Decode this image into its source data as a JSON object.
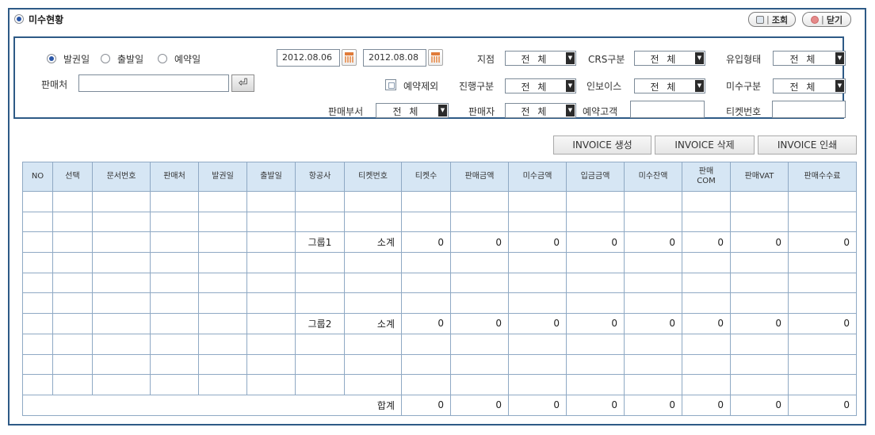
{
  "title": "미수현황",
  "buttons": {
    "search": "조회",
    "close": "닫기"
  },
  "search": {
    "date_types": [
      "발권일",
      "출발일",
      "예약일"
    ],
    "date_from": "2012.08.06",
    "date_to": "2012.08.08",
    "seller_label": "판매처",
    "seller_value": "",
    "enter_icon": "⏎",
    "exclude_reservation_label": "예약제외",
    "branch_label": "지점",
    "branch_value": "전 체",
    "crs_label": "CRS구분",
    "crs_value": "전 체",
    "inflow_label": "유입형태",
    "inflow_value": "전 체",
    "progress_label": "진행구분",
    "progress_value": "전 체",
    "invoice_label": "인보이스",
    "invoice_value": "전 체",
    "unpaid_type_label": "미수구분",
    "unpaid_type_value": "전 체",
    "dept_label": "판매부서",
    "dept_value": "전 체",
    "salesperson_label": "판매자",
    "salesperson_value": "전 체",
    "customer_label": "예약고객",
    "customer_value": "",
    "ticket_label": "티켓번호",
    "ticket_value": ""
  },
  "invoice_buttons": [
    "INVOICE 생성",
    "INVOICE 삭제",
    "INVOICE 인쇄"
  ],
  "table": {
    "headers": [
      "NO",
      "선택",
      "문서번호",
      "판매처",
      "발권일",
      "출발일",
      "항공사",
      "티켓번호",
      "티켓수",
      "판매금액",
      "미수금액",
      "입금금액",
      "미수잔액",
      "판매\nCOM",
      "판매VAT",
      "판매수수료"
    ],
    "rows": [
      [
        "",
        "",
        "",
        "",
        "",
        "",
        "",
        "",
        "",
        "",
        "",
        "",
        "",
        "",
        "",
        ""
      ],
      [
        "",
        "",
        "",
        "",
        "",
        "",
        "",
        "",
        "",
        "",
        "",
        "",
        "",
        "",
        "",
        ""
      ],
      [
        "",
        "",
        "",
        "",
        "",
        "",
        "그룹1",
        "소계",
        "0",
        "0",
        "0",
        "0",
        "0",
        "0",
        "0",
        "0"
      ],
      [
        "",
        "",
        "",
        "",
        "",
        "",
        "",
        "",
        "",
        "",
        "",
        "",
        "",
        "",
        "",
        ""
      ],
      [
        "",
        "",
        "",
        "",
        "",
        "",
        "",
        "",
        "",
        "",
        "",
        "",
        "",
        "",
        "",
        ""
      ],
      [
        "",
        "",
        "",
        "",
        "",
        "",
        "",
        "",
        "",
        "",
        "",
        "",
        "",
        "",
        "",
        ""
      ],
      [
        "",
        "",
        "",
        "",
        "",
        "",
        "그룹2",
        "소계",
        "0",
        "0",
        "0",
        "0",
        "0",
        "0",
        "0",
        "0"
      ],
      [
        "",
        "",
        "",
        "",
        "",
        "",
        "",
        "",
        "",
        "",
        "",
        "",
        "",
        "",
        "",
        ""
      ],
      [
        "",
        "",
        "",
        "",
        "",
        "",
        "",
        "",
        "",
        "",
        "",
        "",
        "",
        "",
        "",
        ""
      ],
      [
        "",
        "",
        "",
        "",
        "",
        "",
        "",
        "",
        "",
        "",
        "",
        "",
        "",
        "",
        "",
        ""
      ]
    ],
    "total": {
      "label": "합계",
      "values": [
        "0",
        "0",
        "0",
        "0",
        "0",
        "0",
        "0",
        "0"
      ]
    }
  },
  "colors": {
    "border": "#2e5a86",
    "header_bg": "#d6e6f4",
    "radio_on": "#2a57a8"
  }
}
